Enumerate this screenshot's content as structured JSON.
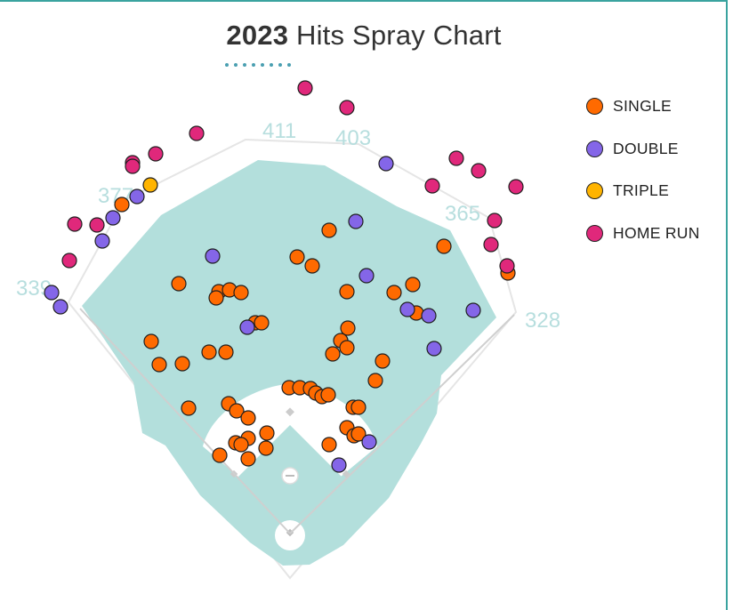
{
  "title": {
    "year": "2023",
    "rest": "Hits Spray Chart"
  },
  "colors": {
    "frame": "#3aa39f",
    "grass": "#b3dfdc",
    "infield_dirt": "#ffffff",
    "distance_text": "#b7dede",
    "title_dots": "#4a9fb1"
  },
  "legend": [
    {
      "key": "single",
      "label": "SINGLE",
      "color": "#ff6a00"
    },
    {
      "key": "double",
      "label": "DOUBLE",
      "color": "#8466e8"
    },
    {
      "key": "triple",
      "label": "TRIPLE",
      "color": "#ffb400"
    },
    {
      "key": "home_run",
      "label": "HOME RUN",
      "color": "#e0287b"
    }
  ],
  "distances": [
    "339",
    "377",
    "411",
    "403",
    "365",
    "328"
  ],
  "chart_data": {
    "type": "scatter",
    "title": "2023 Hits Spray Chart",
    "series": [
      {
        "name": "SINGLE",
        "points": [
          [
            137,
            230
          ],
          [
            370,
            259
          ],
          [
            499,
            277
          ],
          [
            334,
            289
          ],
          [
            351,
            299
          ],
          [
            571,
            307
          ],
          [
            201,
            319
          ],
          [
            246,
            328
          ],
          [
            258,
            326
          ],
          [
            271,
            329
          ],
          [
            243,
            335
          ],
          [
            390,
            328
          ],
          [
            443,
            329
          ],
          [
            464,
            320
          ],
          [
            468,
            352
          ],
          [
            287,
            363
          ],
          [
            294,
            363
          ],
          [
            391,
            369
          ],
          [
            170,
            384
          ],
          [
            383,
            383
          ],
          [
            390,
            391
          ],
          [
            374,
            398
          ],
          [
            179,
            410
          ],
          [
            205,
            409
          ],
          [
            235,
            396
          ],
          [
            254,
            396
          ],
          [
            430,
            406
          ],
          [
            422,
            428
          ],
          [
            325,
            436
          ],
          [
            337,
            436
          ],
          [
            349,
            437
          ],
          [
            355,
            442
          ],
          [
            362,
            446
          ],
          [
            369,
            444
          ],
          [
            212,
            459
          ],
          [
            257,
            454
          ],
          [
            266,
            462
          ],
          [
            279,
            470
          ],
          [
            397,
            458
          ],
          [
            403,
            458
          ],
          [
            390,
            481
          ],
          [
            279,
            493
          ],
          [
            300,
            487
          ],
          [
            265,
            498
          ],
          [
            299,
            504
          ],
          [
            271,
            500
          ],
          [
            247,
            512
          ],
          [
            279,
            516
          ],
          [
            370,
            500
          ],
          [
            398,
            490
          ],
          [
            403,
            488
          ]
        ]
      },
      {
        "name": "DOUBLE",
        "points": [
          [
            58,
            329
          ],
          [
            68,
            345
          ],
          [
            115,
            271
          ],
          [
            127,
            245
          ],
          [
            154,
            221
          ],
          [
            239,
            288
          ],
          [
            278,
            368
          ],
          [
            400,
            249
          ],
          [
            412,
            310
          ],
          [
            434,
            184
          ],
          [
            458,
            348
          ],
          [
            482,
            355
          ],
          [
            532,
            349
          ],
          [
            488,
            392
          ],
          [
            415,
            497
          ],
          [
            381,
            523
          ]
        ]
      },
      {
        "name": "TRIPLE",
        "points": [
          [
            169,
            208
          ]
        ]
      },
      {
        "name": "HOME RUN",
        "points": [
          [
            343,
            99
          ],
          [
            390,
            121
          ],
          [
            221,
            150
          ],
          [
            175,
            173
          ],
          [
            149,
            183
          ],
          [
            149,
            187
          ],
          [
            84,
            252
          ],
          [
            109,
            253
          ],
          [
            78,
            293
          ],
          [
            513,
            178
          ],
          [
            538,
            192
          ],
          [
            486,
            209
          ],
          [
            580,
            210
          ],
          [
            556,
            248
          ],
          [
            552,
            275
          ],
          [
            570,
            299
          ]
        ]
      }
    ]
  }
}
